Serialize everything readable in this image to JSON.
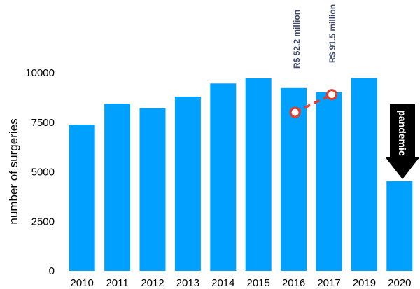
{
  "chart_data": {
    "type": "bar",
    "ylabel": "number of surgeries",
    "categories": [
      "2010",
      "2011",
      "2012",
      "2013",
      "2014",
      "2015",
      "2016",
      "2017",
      "2019",
      "2020"
    ],
    "values": [
      7380,
      8440,
      8210,
      8800,
      9460,
      9720,
      9230,
      9020,
      9730,
      4530
    ],
    "ylim": [
      0,
      10000
    ],
    "yticks": [
      "0",
      "2500",
      "5000",
      "7500",
      "10000"
    ],
    "grid": false,
    "bar_color": "#00a0ff",
    "annotations": {
      "cost_2016": "R$ 52.2 million",
      "cost_2017": "R$ 91.5 million",
      "event_2020": "pandemic",
      "cost_trend": {
        "from": {
          "x": "2016",
          "y": 8000
        },
        "to": {
          "x": "2017",
          "y": 8900
        }
      },
      "marker_color": "#e23b2e",
      "arrow_color": "#000000"
    }
  }
}
